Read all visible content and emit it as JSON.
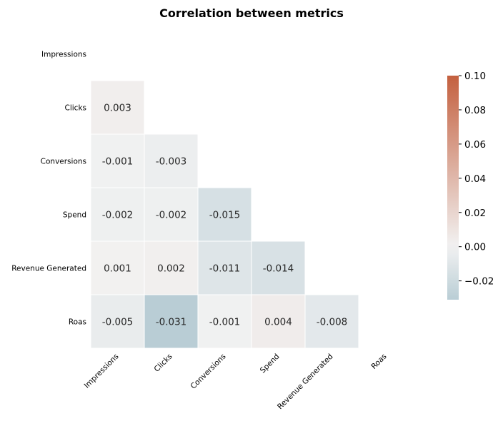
{
  "chart_data": {
    "type": "heatmap",
    "title": "Correlation between metrics",
    "labels": [
      "Impressions",
      "Clicks",
      "Conversions",
      "Spend",
      "Revenue Generated",
      "Roas"
    ],
    "mask": "upper-triangle-including-diagonal",
    "cells": [
      {
        "row": "Clicks",
        "col": "Impressions",
        "value": 0.003
      },
      {
        "row": "Conversions",
        "col": "Impressions",
        "value": -0.001
      },
      {
        "row": "Conversions",
        "col": "Clicks",
        "value": -0.003
      },
      {
        "row": "Spend",
        "col": "Impressions",
        "value": -0.002
      },
      {
        "row": "Spend",
        "col": "Clicks",
        "value": -0.002
      },
      {
        "row": "Spend",
        "col": "Conversions",
        "value": -0.015
      },
      {
        "row": "Revenue Generated",
        "col": "Impressions",
        "value": 0.001
      },
      {
        "row": "Revenue Generated",
        "col": "Clicks",
        "value": 0.002
      },
      {
        "row": "Revenue Generated",
        "col": "Conversions",
        "value": -0.011
      },
      {
        "row": "Revenue Generated",
        "col": "Spend",
        "value": -0.014
      },
      {
        "row": "Roas",
        "col": "Impressions",
        "value": -0.005
      },
      {
        "row": "Roas",
        "col": "Clicks",
        "value": -0.031
      },
      {
        "row": "Roas",
        "col": "Conversions",
        "value": -0.001
      },
      {
        "row": "Roas",
        "col": "Spend",
        "value": 0.004
      },
      {
        "row": "Roas",
        "col": "Revenue Generated",
        "value": -0.008
      }
    ],
    "colorbar": {
      "vmin": -0.031,
      "vmax": 0.1,
      "center": 0.0,
      "ticks": [
        "0.10",
        "0.08",
        "0.06",
        "0.04",
        "0.02",
        "0.00",
        "−0.02"
      ],
      "tick_values": [
        0.1,
        0.08,
        0.06,
        0.04,
        0.02,
        0.0,
        -0.02
      ]
    },
    "colors": {
      "negative_end": "#b9cdd5",
      "center": "#f2f2f2",
      "positive_end": "#c4603f"
    }
  }
}
